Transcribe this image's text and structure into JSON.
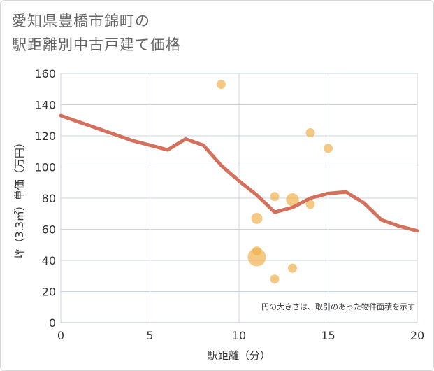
{
  "title": {
    "line1": "愛知県豊橋市錦町の",
    "line2": "駅距離別中古戸建て価格"
  },
  "note": "円の大きさは、取引のあった物件面積を示す",
  "colors": {
    "line": "#d4705b",
    "bubble": "#f0b24f",
    "grid": "#c8d4e0"
  },
  "chart_data": {
    "type": "scatter",
    "title": "愛知県豊橋市錦町の駅距離別中古戸建て価格",
    "xlabel": "駅距離（分）",
    "ylabel": "坪（3.3㎡）単価（万円）",
    "xlim": [
      0,
      20
    ],
    "ylim": [
      0,
      160
    ],
    "xticks": [
      0,
      5,
      10,
      15,
      20
    ],
    "yticks": [
      0,
      20,
      40,
      60,
      80,
      100,
      120,
      140,
      160
    ],
    "grid": true,
    "series": [
      {
        "type": "line",
        "x": [
          0,
          1,
          2,
          3,
          4,
          5,
          6,
          7,
          8,
          9,
          10,
          11,
          12,
          13,
          14,
          15,
          16,
          17,
          18,
          19,
          20
        ],
        "y": [
          133,
          129,
          125,
          121,
          117,
          114,
          111,
          118,
          114,
          101,
          91,
          82,
          71,
          74,
          80,
          83,
          84,
          77,
          66,
          62,
          59
        ]
      },
      {
        "type": "bubble",
        "points": [
          {
            "x": 9,
            "y": 153,
            "size": 1
          },
          {
            "x": 14,
            "y": 122,
            "size": 1
          },
          {
            "x": 15,
            "y": 112,
            "size": 1
          },
          {
            "x": 12,
            "y": 81,
            "size": 1
          },
          {
            "x": 13,
            "y": 79,
            "size": 2
          },
          {
            "x": 14,
            "y": 76,
            "size": 1
          },
          {
            "x": 11,
            "y": 67,
            "size": 1.5
          },
          {
            "x": 11,
            "y": 46,
            "size": 1
          },
          {
            "x": 11,
            "y": 42,
            "size": 4
          },
          {
            "x": 13,
            "y": 35,
            "size": 1
          },
          {
            "x": 12,
            "y": 28,
            "size": 1
          }
        ]
      }
    ]
  }
}
